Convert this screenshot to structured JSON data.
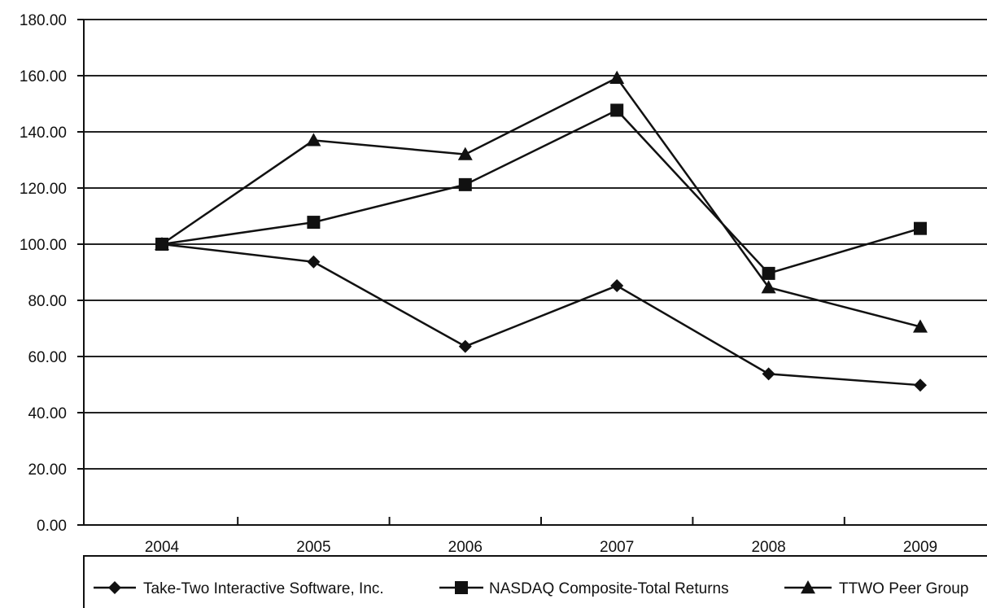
{
  "chart_data": {
    "type": "line",
    "title": "",
    "xlabel": "",
    "ylabel": "",
    "categories": [
      "2004",
      "2005",
      "2006",
      "2007",
      "2008",
      "2009"
    ],
    "ylim": [
      0,
      180
    ],
    "y_ticks": [
      "0.00",
      "20.00",
      "40.00",
      "60.00",
      "80.00",
      "100.00",
      "120.00",
      "140.00",
      "160.00",
      "180.00"
    ],
    "grid": "horizontal",
    "legend_position": "bottom",
    "series": [
      {
        "name": "Take-Two Interactive Software, Inc.",
        "marker": "diamond",
        "values": [
          100,
          93.7,
          63.6,
          85.2,
          53.8,
          49.8
        ]
      },
      {
        "name": "NASDAQ Composite-Total Returns",
        "marker": "square",
        "values": [
          100,
          107.8,
          121.2,
          147.7,
          89.6,
          105.6
        ]
      },
      {
        "name": "TTWO Peer Group",
        "marker": "triangle",
        "values": [
          100,
          137,
          132,
          159.2,
          84.6,
          70.6
        ]
      }
    ],
    "colors": {
      "line": "#111111",
      "grid": "#222222"
    }
  }
}
